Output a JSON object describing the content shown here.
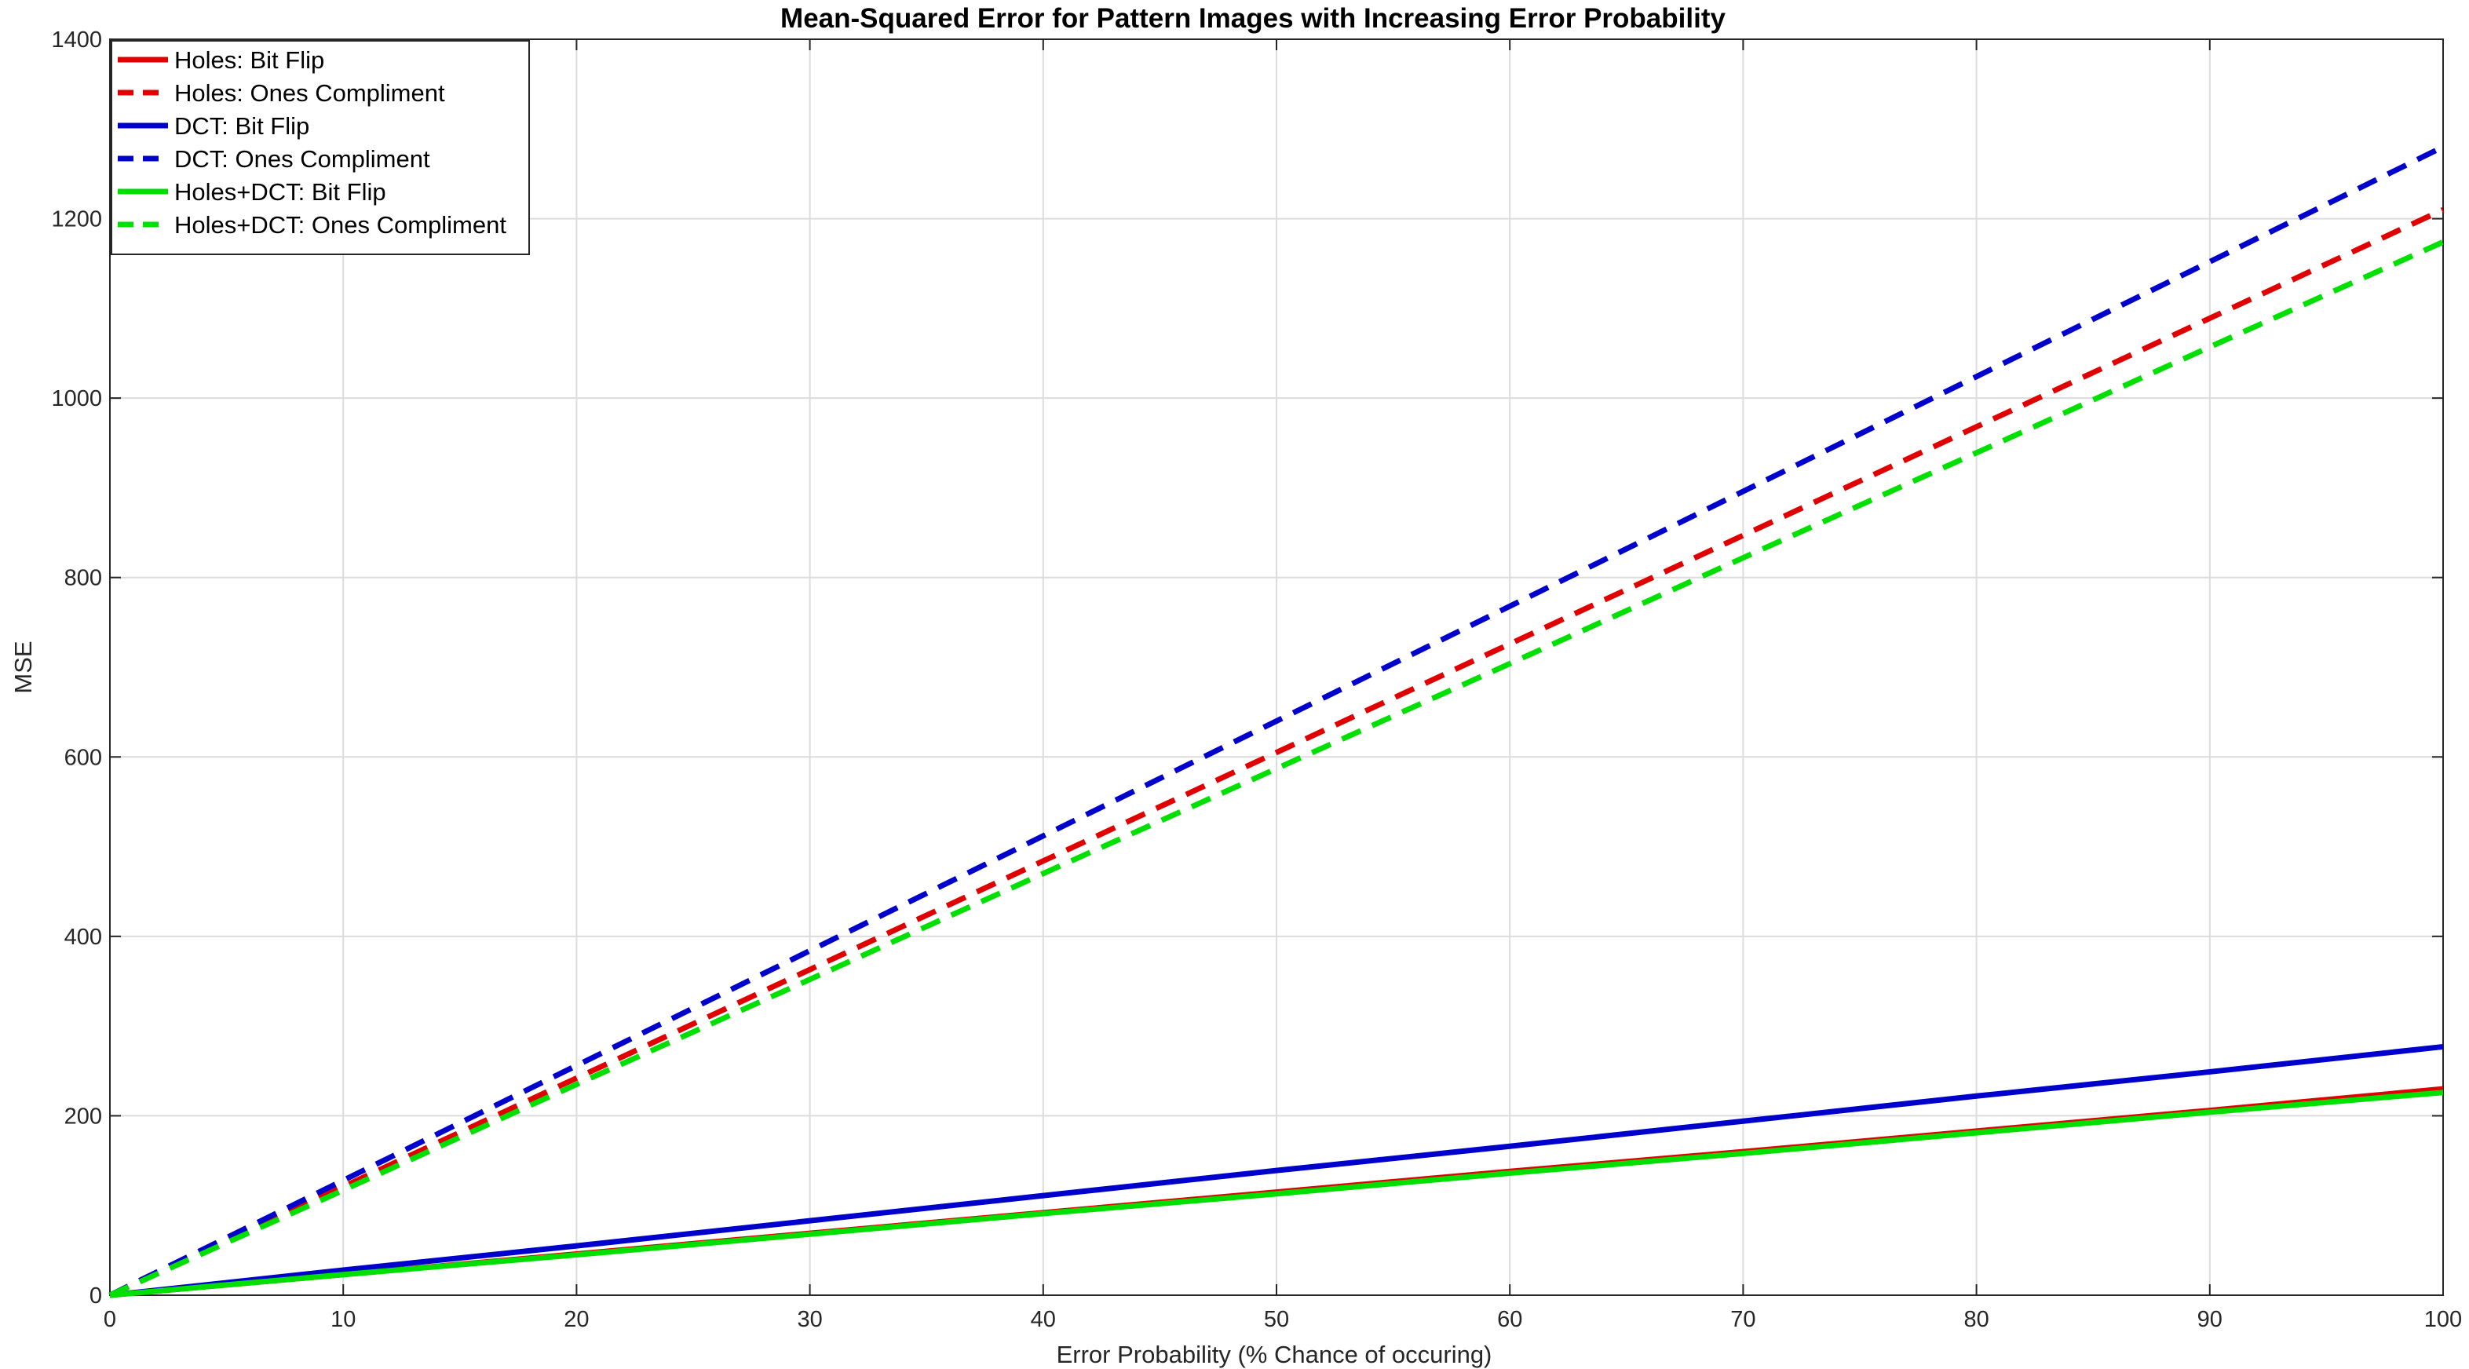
{
  "chart_data": {
    "type": "line",
    "title": "Mean-Squared Error for Pattern Images with Increasing Error Probability",
    "xlabel": "Error Probability (% Chance of occuring)",
    "ylabel": "MSE",
    "xlim": [
      0,
      100
    ],
    "ylim": [
      0,
      1400
    ],
    "xticks": [
      "0",
      "10",
      "20",
      "30",
      "40",
      "50",
      "60",
      "70",
      "80",
      "90",
      "100"
    ],
    "yticks": [
      "0",
      "200",
      "400",
      "600",
      "800",
      "1000",
      "1200",
      "1400"
    ],
    "grid": true,
    "legend_position": "top-left",
    "x": [
      0,
      10,
      20,
      30,
      40,
      50,
      60,
      70,
      80,
      90,
      100
    ],
    "series": [
      {
        "name": "Holes: Bit Flip",
        "color": "#e00000",
        "dash": "solid",
        "values": [
          0,
          23,
          46,
          69,
          92,
          115,
          138,
          160,
          183,
          206,
          230
        ]
      },
      {
        "name": "Holes: Ones Compliment",
        "color": "#e00000",
        "dash": "dashed",
        "values": [
          0,
          121,
          242,
          363,
          484,
          605,
          726,
          847,
          968,
          1089,
          1210
        ]
      },
      {
        "name": "DCT: Bit Flip",
        "color": "#0000cc",
        "dash": "solid",
        "values": [
          0,
          28,
          55,
          83,
          111,
          139,
          166,
          194,
          222,
          249,
          277
        ]
      },
      {
        "name": "DCT: Ones Compliment",
        "color": "#0000cc",
        "dash": "dashed",
        "values": [
          0,
          128,
          256,
          384,
          512,
          640,
          768,
          896,
          1024,
          1152,
          1280
        ]
      },
      {
        "name": "Holes+DCT: Bit Flip",
        "color": "#00e000",
        "dash": "solid",
        "values": [
          0,
          23,
          45,
          68,
          91,
          113,
          136,
          158,
          181,
          204,
          226
        ]
      },
      {
        "name": "Holes+DCT: Ones Compliment",
        "color": "#00e000",
        "dash": "dashed",
        "values": [
          0,
          117,
          235,
          352,
          470,
          587,
          704,
          822,
          939,
          1057,
          1174
        ]
      }
    ]
  }
}
